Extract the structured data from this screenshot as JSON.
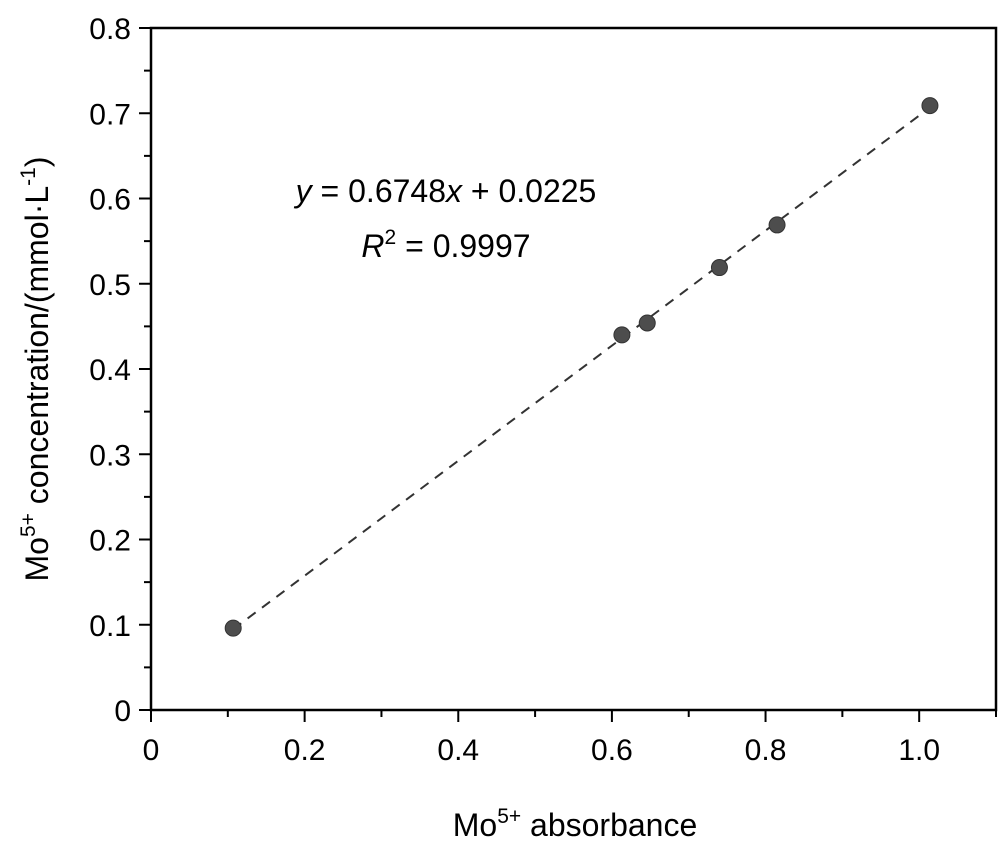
{
  "chart_data": {
    "type": "scatter",
    "xlabel": {
      "base": "Mo",
      "sup": "5+",
      "rest": " absorbance"
    },
    "ylabel": {
      "base": "Mo",
      "sup": "5+",
      "rest": " concentration/(mmol·L",
      "sup2": "-1",
      "end": ")"
    },
    "xlim": [
      0,
      1.1
    ],
    "ylim": [
      0,
      0.8
    ],
    "xticks": [
      0,
      0.2,
      0.4,
      0.6,
      0.8,
      1.0
    ],
    "xtick_labels": [
      "0",
      "0.2",
      "0.4",
      "0.6",
      "0.8",
      "1.0"
    ],
    "yticks": [
      0,
      0.1,
      0.2,
      0.3,
      0.4,
      0.5,
      0.6,
      0.7,
      0.8
    ],
    "ytick_labels": [
      "0",
      "0.1",
      "0.2",
      "0.3",
      "0.4",
      "0.5",
      "0.6",
      "0.7",
      "0.8"
    ],
    "grid": false,
    "points": [
      {
        "x": 0.107,
        "y": 0.096
      },
      {
        "x": 0.613,
        "y": 0.44
      },
      {
        "x": 0.646,
        "y": 0.454
      },
      {
        "x": 0.74,
        "y": 0.519
      },
      {
        "x": 0.815,
        "y": 0.569
      },
      {
        "x": 1.014,
        "y": 0.709
      }
    ],
    "fit": {
      "slope": 0.6748,
      "intercept": 0.0225,
      "x_range": [
        0.107,
        1.014
      ]
    },
    "annotation": {
      "eq_y": "y",
      "eq_mid": " = 0.6748",
      "eq_x": "x",
      "eq_end": " + 0.0225",
      "r_label": "R",
      "r_sup": "2",
      "r_value": " = 0.9997"
    },
    "colors": {
      "point": "#4d4d4d",
      "line": "#333333",
      "axis": "#000000"
    }
  }
}
